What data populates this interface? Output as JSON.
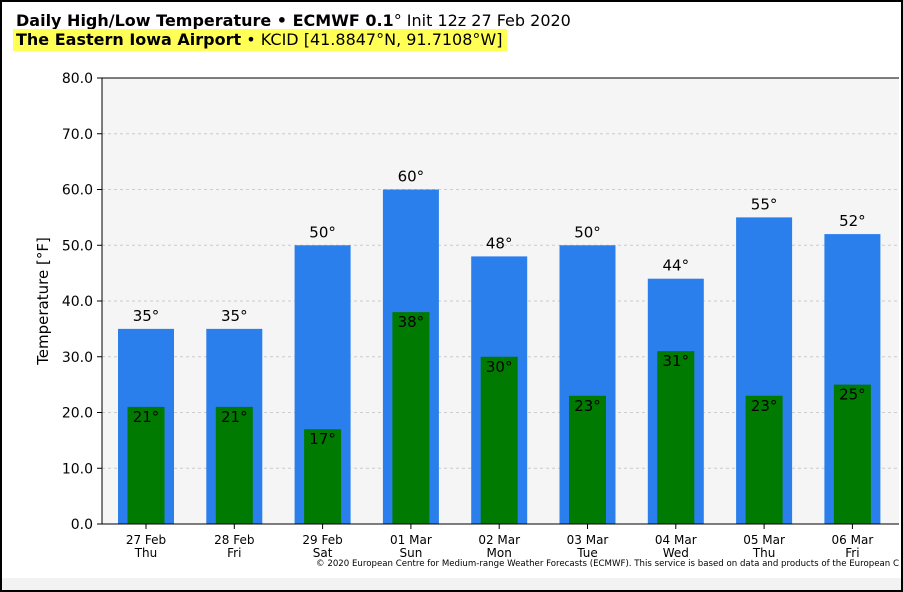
{
  "header": {
    "title_bold": "Daily High/Low Temperature • ECMWF 0.1",
    "title_deg": "°",
    "title_rest": " Init 12z 27 Feb 2020",
    "station_bold": "The Eastern Iowa Airport",
    "station_rest": " • KCID [41.8847°N, 91.7108°W]"
  },
  "copyright": "© 2020 European Centre for Medium-range Weather Forecasts (ECMWF). This service is based on data and products of the European C",
  "chart_data": {
    "type": "bar",
    "title": "Daily High/Low Temperature • ECMWF 0.1° Init 12z 27 Feb 2020",
    "subtitle": "The Eastern Iowa Airport • KCID [41.8847°N, 91.7108°W]",
    "xlabel": "",
    "ylabel": "Temperature [°F]",
    "ylim": [
      0,
      80
    ],
    "yticks": [
      "0.0",
      "10.0",
      "20.0",
      "30.0",
      "40.0",
      "50.0",
      "60.0",
      "70.0",
      "80.0"
    ],
    "grid": true,
    "categories": [
      "27 Feb",
      "28 Feb",
      "29 Feb",
      "01 Mar",
      "02 Mar",
      "03 Mar",
      "04 Mar",
      "05 Mar",
      "06 Mar"
    ],
    "weekdays": [
      "Thu",
      "Fri",
      "Sat",
      "Sun",
      "Mon",
      "Tue",
      "Wed",
      "Thu",
      "Fri"
    ],
    "series": [
      {
        "values": [
          35,
          35,
          50,
          60,
          48,
          50,
          44,
          55,
          52
        ],
        "labels": [
          "35°",
          "35°",
          "50°",
          "60°",
          "48°",
          "50°",
          "44°",
          "55°",
          "52°"
        ],
        "color": "#2a7fec"
      },
      {
        "values": [
          21,
          21,
          17,
          38,
          30,
          23,
          31,
          23,
          25
        ],
        "labels": [
          "21°",
          "21°",
          "17°",
          "38°",
          "30°",
          "23°",
          "31°",
          "23°",
          "25°"
        ],
        "color": "#007a00"
      }
    ],
    "colors": {
      "plot_bg": "#f5f5f5",
      "grid": "#cccccc",
      "highlight": "#ffff55"
    }
  }
}
